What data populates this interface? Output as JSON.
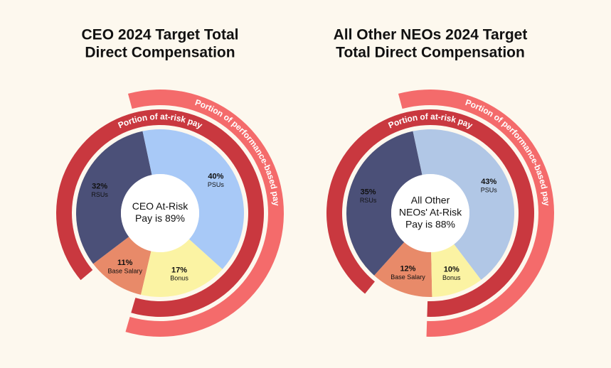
{
  "chart_data": [
    {
      "type": "pie",
      "title": [
        "CEO 2024 Target Total",
        "Direct Compensation"
      ],
      "center_label": [
        "CEO At-Risk",
        "Pay is 89%"
      ],
      "categories": [
        "Base Salary",
        "RSUs",
        "PSUs",
        "Bonus"
      ],
      "values": [
        11,
        32,
        40,
        17
      ],
      "value_labels": [
        "11%",
        "32%",
        "40%",
        "17%"
      ],
      "colors": [
        "#e88a69",
        "#4b5078",
        "#a8c9f7",
        "#fbf3a3"
      ],
      "arcs": [
        {
          "label": "Portion of at-risk pay",
          "color": "#c9383f"
        },
        {
          "label": "Portion of performance-based pay",
          "color": "#f46b6b"
        }
      ]
    },
    {
      "type": "pie",
      "title": [
        "All Other NEOs 2024 Target",
        "Total Direct Compensation"
      ],
      "center_label": [
        "All Other",
        "NEOs' At-Risk",
        "Pay is 88%"
      ],
      "categories": [
        "Base Salary",
        "RSUs",
        "PSUs",
        "Bonus"
      ],
      "values": [
        12,
        35,
        43,
        10
      ],
      "value_labels": [
        "12%",
        "35%",
        "43%",
        "10%"
      ],
      "colors": [
        "#e88a69",
        "#4b5078",
        "#b1c7e6",
        "#fbf3a3"
      ],
      "arcs": [
        {
          "label": "Portion of at-risk pay",
          "color": "#c9383f"
        },
        {
          "label": "Portion of performance-based pay",
          "color": "#f46b6b"
        }
      ]
    }
  ]
}
